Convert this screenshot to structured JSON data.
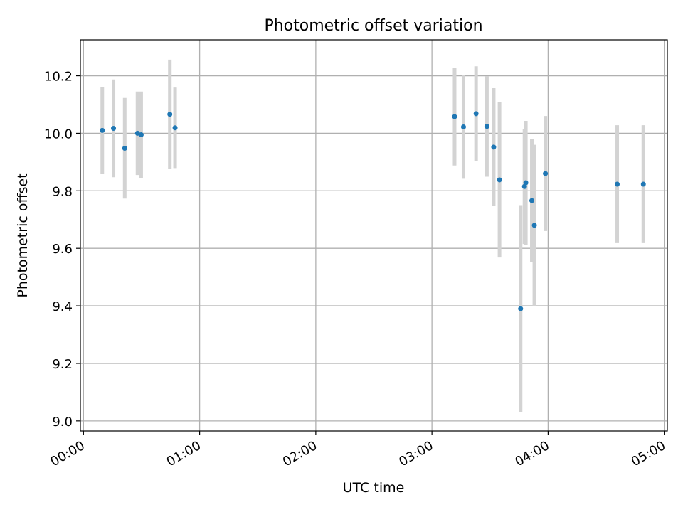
{
  "chart_data": {
    "type": "scatter",
    "title": "Photometric offset variation",
    "xlabel": "UTC time",
    "ylabel": "Photometric offset",
    "xlim_minutes": [
      -1.6,
      301.6
    ],
    "ylim": [
      8.965,
      10.325
    ],
    "x_ticks": [
      {
        "minutes": 0,
        "label": "00:00"
      },
      {
        "minutes": 60,
        "label": "01:00"
      },
      {
        "minutes": 120,
        "label": "02:00"
      },
      {
        "minutes": 180,
        "label": "03:00"
      },
      {
        "minutes": 240,
        "label": "04:00"
      },
      {
        "minutes": 300,
        "label": "05:00"
      }
    ],
    "y_ticks": [
      {
        "value": 9.0,
        "label": "9.0"
      },
      {
        "value": 9.2,
        "label": "9.2"
      },
      {
        "value": 9.4,
        "label": "9.4"
      },
      {
        "value": 9.6,
        "label": "9.6"
      },
      {
        "value": 9.8,
        "label": "9.8"
      },
      {
        "value": 10.0,
        "label": "10.0"
      },
      {
        "value": 10.2,
        "label": "10.2"
      }
    ],
    "grid": true,
    "points": [
      {
        "minutes": 9.7,
        "y": 10.01,
        "err": 0.15
      },
      {
        "minutes": 15.5,
        "y": 10.017,
        "err": 0.17
      },
      {
        "minutes": 21.3,
        "y": 9.948,
        "err": 0.175
      },
      {
        "minutes": 27.9,
        "y": 10.0,
        "err": 0.145
      },
      {
        "minutes": 29.8,
        "y": 9.995,
        "err": 0.15
      },
      {
        "minutes": 44.6,
        "y": 10.066,
        "err": 0.19
      },
      {
        "minutes": 47.3,
        "y": 10.019,
        "err": 0.14
      },
      {
        "minutes": 191.7,
        "y": 10.058,
        "err": 0.17
      },
      {
        "minutes": 196.3,
        "y": 10.022,
        "err": 0.18
      },
      {
        "minutes": 202.8,
        "y": 10.068,
        "err": 0.165
      },
      {
        "minutes": 208.4,
        "y": 10.024,
        "err": 0.175
      },
      {
        "minutes": 211.9,
        "y": 9.952,
        "err": 0.205
      },
      {
        "minutes": 214.9,
        "y": 9.838,
        "err": 0.27
      },
      {
        "minutes": 225.8,
        "y": 9.39,
        "err": 0.36
      },
      {
        "minutes": 227.8,
        "y": 9.815,
        "err": 0.2
      },
      {
        "minutes": 228.5,
        "y": 9.828,
        "err": 0.215
      },
      {
        "minutes": 231.6,
        "y": 9.766,
        "err": 0.215
      },
      {
        "minutes": 232.9,
        "y": 9.68,
        "err": 0.28
      },
      {
        "minutes": 238.6,
        "y": 9.86,
        "err": 0.2
      },
      {
        "minutes": 275.7,
        "y": 9.823,
        "err": 0.205
      },
      {
        "minutes": 289.2,
        "y": 9.823,
        "err": 0.205
      }
    ],
    "colors": {
      "point": "#1f77b4",
      "errorbar": "#d3d3d3",
      "grid": "#b0b0b0",
      "axis": "#000000"
    }
  }
}
